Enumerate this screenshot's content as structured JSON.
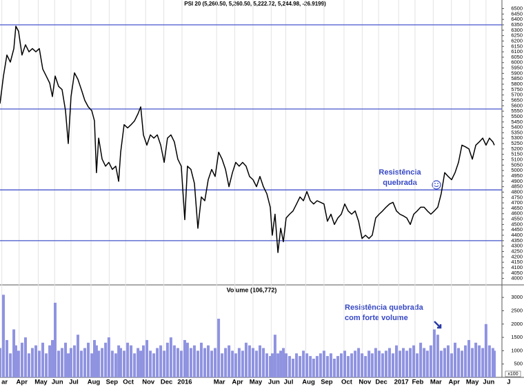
{
  "chart_data": [
    {
      "type": "line",
      "title": "PSI 20 (5,260.50, 5,260.50, 5,222.72, 5,244.98, -26.9199)",
      "x": [
        0,
        0.19,
        0.38,
        0.57,
        0.76,
        0.87,
        1.02,
        1.21,
        1.4,
        1.59,
        1.78,
        1.97,
        2.16,
        2.35,
        2.54,
        2.73,
        2.88,
        3.03,
        3.22,
        3.41,
        3.6,
        3.75,
        3.9,
        4.09,
        4.28,
        4.47,
        4.66,
        4.85,
        5.04,
        5.19,
        5.3,
        5.42,
        5.61,
        5.8,
        5.98,
        6.17,
        6.36,
        6.52,
        6.63,
        6.82,
        7.01,
        7.2,
        7.39,
        7.58,
        7.73,
        7.88,
        8.07,
        8.26,
        8.45,
        8.64,
        8.83,
        9.02,
        9.2,
        9.39,
        9.58,
        9.77,
        9.96,
        10.15,
        10.3,
        10.49,
        10.68,
        10.87,
        11.06,
        11.25,
        11.44,
        11.63,
        11.82,
        12.01,
        12.2,
        12.39,
        12.58,
        12.77,
        12.95,
        13.14,
        13.33,
        13.52,
        13.71,
        13.9,
        14.09,
        14.28,
        14.47,
        14.66,
        14.85,
        14.96,
        15.11,
        15.27,
        15.42,
        15.57,
        15.72,
        15.91,
        16.1,
        16.29,
        16.48,
        16.67,
        16.86,
        17.05,
        17.23,
        17.42,
        17.61,
        17.8,
        17.99,
        18.18,
        18.37,
        18.56,
        18.75,
        18.94,
        19.13,
        19.32,
        19.51,
        19.7,
        19.89,
        20.08,
        20.27,
        20.45,
        20.64,
        20.83,
        21.02,
        21.21,
        21.4,
        21.59,
        21.78,
        21.97,
        22.16,
        22.35,
        22.54,
        22.73,
        22.92,
        23.11,
        23.3,
        23.48,
        23.67,
        23.86,
        24.05,
        24.24,
        24.43,
        24.62,
        24.81,
        25.0,
        25.19,
        25.38,
        25.57,
        25.76,
        25.95,
        26.14,
        26.33,
        26.52,
        26.7,
        26.89,
        27.08,
        27.16
      ],
      "series": [
        {
          "name": "PSI 20",
          "color": "#000000",
          "values": [
            5620,
            5875,
            6070,
            6005,
            6130,
            6337,
            6290,
            6070,
            6165,
            6100,
            6130,
            6100,
            6130,
            5940,
            5875,
            5810,
            5685,
            5875,
            5780,
            5750,
            5555,
            5250,
            5685,
            5905,
            5845,
            5750,
            5650,
            5590,
            5555,
            5460,
            4980,
            5300,
            5105,
            5040,
            5075,
            5010,
            5040,
            4900,
            5170,
            5425,
            5395,
            5425,
            5460,
            5525,
            5590,
            5330,
            5235,
            5330,
            5300,
            5330,
            5235,
            5075,
            5300,
            5330,
            5265,
            5105,
            5040,
            4545,
            5040,
            5010,
            4880,
            4465,
            4755,
            4720,
            4915,
            5010,
            4945,
            5170,
            5105,
            5010,
            4850,
            4980,
            5075,
            5040,
            5075,
            5040,
            4945,
            4915,
            4850,
            4945,
            4850,
            4785,
            4660,
            4400,
            4595,
            4240,
            4465,
            4340,
            4560,
            4595,
            4625,
            4690,
            4755,
            4720,
            4805,
            4720,
            4690,
            4720,
            4705,
            4690,
            4530,
            4595,
            4500,
            4560,
            4595,
            4690,
            4625,
            4595,
            4625,
            4530,
            4370,
            4400,
            4370,
            4400,
            4560,
            4595,
            4625,
            4660,
            4690,
            4705,
            4625,
            4595,
            4580,
            4560,
            4500,
            4595,
            4625,
            4660,
            4660,
            4625,
            4595,
            4625,
            4660,
            4785,
            4980,
            4945,
            4915,
            4980,
            5075,
            5235,
            5220,
            5200,
            5105,
            5235,
            5265,
            5300,
            5235,
            5300,
            5265,
            5235
          ]
        }
      ],
      "hlines": [
        6350,
        5570,
        4820,
        4350
      ],
      "hline_color": "#4455cc",
      "annotation": [
        "Resistência",
        "quebrada"
      ],
      "xlim": [
        0,
        27.5
      ],
      "ylim": [
        3940,
        6580
      ],
      "yticks": [
        4000,
        4050,
        4100,
        4150,
        4200,
        4250,
        4300,
        4350,
        4400,
        4450,
        4500,
        4550,
        4600,
        4650,
        4700,
        4750,
        4800,
        4850,
        4900,
        4950,
        5000,
        5050,
        5100,
        5150,
        5200,
        5250,
        5300,
        5350,
        5400,
        5450,
        5500,
        5550,
        5600,
        5650,
        5700,
        5750,
        5800,
        5850,
        5900,
        5950,
        6000,
        6050,
        6100,
        6150,
        6200,
        6250,
        6300,
        6350,
        6400,
        6450,
        6500
      ],
      "xticks": [
        {
          "value": 0.1,
          "label": "ar"
        },
        {
          "value": 1.05,
          "label": "Apr"
        },
        {
          "value": 2.1,
          "label": "May"
        },
        {
          "value": 3,
          "label": "Jun"
        },
        {
          "value": 3.9,
          "label": "Jul"
        },
        {
          "value": 5,
          "label": "Aug"
        },
        {
          "value": 6,
          "label": "Sep"
        },
        {
          "value": 6.9,
          "label": "Oct"
        },
        {
          "value": 8,
          "label": "Nov"
        },
        {
          "value": 9,
          "label": "Dec"
        },
        {
          "value": 10,
          "label": "2016"
        },
        {
          "value": 11.9,
          "label": "Mar"
        },
        {
          "value": 12.9,
          "label": "Apr"
        },
        {
          "value": 13.9,
          "label": "May"
        },
        {
          "value": 14.9,
          "label": "Jun"
        },
        {
          "value": 15.7,
          "label": "Jul"
        },
        {
          "value": 16.8,
          "label": "Aug"
        },
        {
          "value": 17.8,
          "label": "Sep"
        },
        {
          "value": 18.9,
          "label": "Oct"
        },
        {
          "value": 19.9,
          "label": "Nov"
        },
        {
          "value": 20.8,
          "label": "Dec"
        },
        {
          "value": 21.9,
          "label": "2017"
        },
        {
          "value": 22.8,
          "label": "Feb"
        },
        {
          "value": 23.8,
          "label": "Mar"
        },
        {
          "value": 24.8,
          "label": "Apr"
        },
        {
          "value": 25.8,
          "label": "May"
        },
        {
          "value": 26.7,
          "label": "Jun"
        },
        {
          "value": 27.8,
          "label": "J"
        }
      ],
      "grid": true
    },
    {
      "type": "bar",
      "title": "Volume (106,772)",
      "unit": "x100",
      "x": [
        0,
        0.19,
        0.38,
        0.57,
        0.76,
        0.87,
        1.02,
        1.21,
        1.4,
        1.59,
        1.78,
        1.97,
        2.16,
        2.35,
        2.54,
        2.73,
        2.88,
        3.03,
        3.22,
        3.41,
        3.6,
        3.75,
        3.9,
        4.09,
        4.28,
        4.47,
        4.66,
        4.85,
        5.04,
        5.19,
        5.3,
        5.42,
        5.61,
        5.8,
        5.98,
        6.17,
        6.36,
        6.52,
        6.63,
        6.82,
        7.01,
        7.2,
        7.39,
        7.58,
        7.73,
        7.88,
        8.07,
        8.26,
        8.45,
        8.64,
        8.83,
        9.02,
        9.2,
        9.39,
        9.58,
        9.77,
        9.96,
        10.15,
        10.3,
        10.49,
        10.68,
        10.87,
        11.06,
        11.25,
        11.44,
        11.63,
        11.82,
        12.01,
        12.2,
        12.39,
        12.58,
        12.77,
        12.95,
        13.14,
        13.33,
        13.52,
        13.71,
        13.9,
        14.09,
        14.28,
        14.47,
        14.66,
        14.85,
        14.96,
        15.11,
        15.27,
        15.42,
        15.57,
        15.72,
        15.91,
        16.1,
        16.29,
        16.48,
        16.67,
        16.86,
        17.05,
        17.23,
        17.42,
        17.61,
        17.8,
        17.99,
        18.18,
        18.37,
        18.56,
        18.75,
        18.94,
        19.13,
        19.32,
        19.51,
        19.7,
        19.89,
        20.08,
        20.27,
        20.45,
        20.64,
        20.83,
        21.02,
        21.21,
        21.4,
        21.59,
        21.78,
        21.97,
        22.16,
        22.35,
        22.54,
        22.73,
        22.92,
        23.11,
        23.3,
        23.48,
        23.67,
        23.86,
        24.05,
        24.24,
        24.43,
        24.62,
        24.81,
        25.0,
        25.19,
        25.38,
        25.57,
        25.76,
        25.95,
        26.14,
        26.33,
        26.52,
        26.7,
        26.89,
        27.08,
        27.16
      ],
      "series": [
        {
          "name": "Volume",
          "color": "#8f93e0",
          "values": [
            1100,
            3100,
            1400,
            900,
            1800,
            1200,
            1000,
            1300,
            1500,
            900,
            1100,
            1200,
            1000,
            1300,
            900,
            1200,
            1400,
            2800,
            1000,
            1100,
            1300,
            900,
            1100,
            1200,
            1600,
            1000,
            1100,
            1300,
            900,
            1400,
            1200,
            1000,
            1100,
            1300,
            1500,
            1000,
            900,
            1200,
            1100,
            1000,
            1300,
            1200,
            900,
            1100,
            1000,
            1200,
            1400,
            1000,
            900,
            1100,
            1200,
            1000,
            1300,
            1500,
            1200,
            1100,
            1000,
            1400,
            1300,
            1100,
            1200,
            1000,
            1300,
            1100,
            1200,
            1000,
            1100,
            2200,
            900,
            1100,
            1200,
            1000,
            900,
            1100,
            1000,
            1300,
            1200,
            1100,
            1000,
            1200,
            1100,
            900,
            800,
            900,
            1600,
            900,
            1000,
            1100,
            900,
            800,
            700,
            900,
            800,
            1000,
            900,
            800,
            700,
            800,
            900,
            1000,
            800,
            900,
            700,
            800,
            900,
            1000,
            800,
            900,
            1000,
            1100,
            900,
            800,
            1000,
            900,
            1100,
            1000,
            900,
            1000,
            1100,
            900,
            1200,
            1000,
            1100,
            1000,
            1100,
            1200,
            900,
            1300,
            1100,
            1000,
            1200,
            1800,
            1600,
            1000,
            1100,
            1200,
            900,
            1300,
            1100,
            1000,
            1200,
            1400,
            1100,
            1300,
            1200,
            1100,
            2000,
            1200,
            1100,
            1000
          ]
        }
      ],
      "annotation": [
        "Resistência quebrada",
        "com forte volume"
      ],
      "xlim": [
        0,
        27.5
      ],
      "ylim": [
        0,
        3470
      ],
      "yticks": [
        500,
        1000,
        1500,
        2000,
        2500,
        3000
      ]
    }
  ]
}
